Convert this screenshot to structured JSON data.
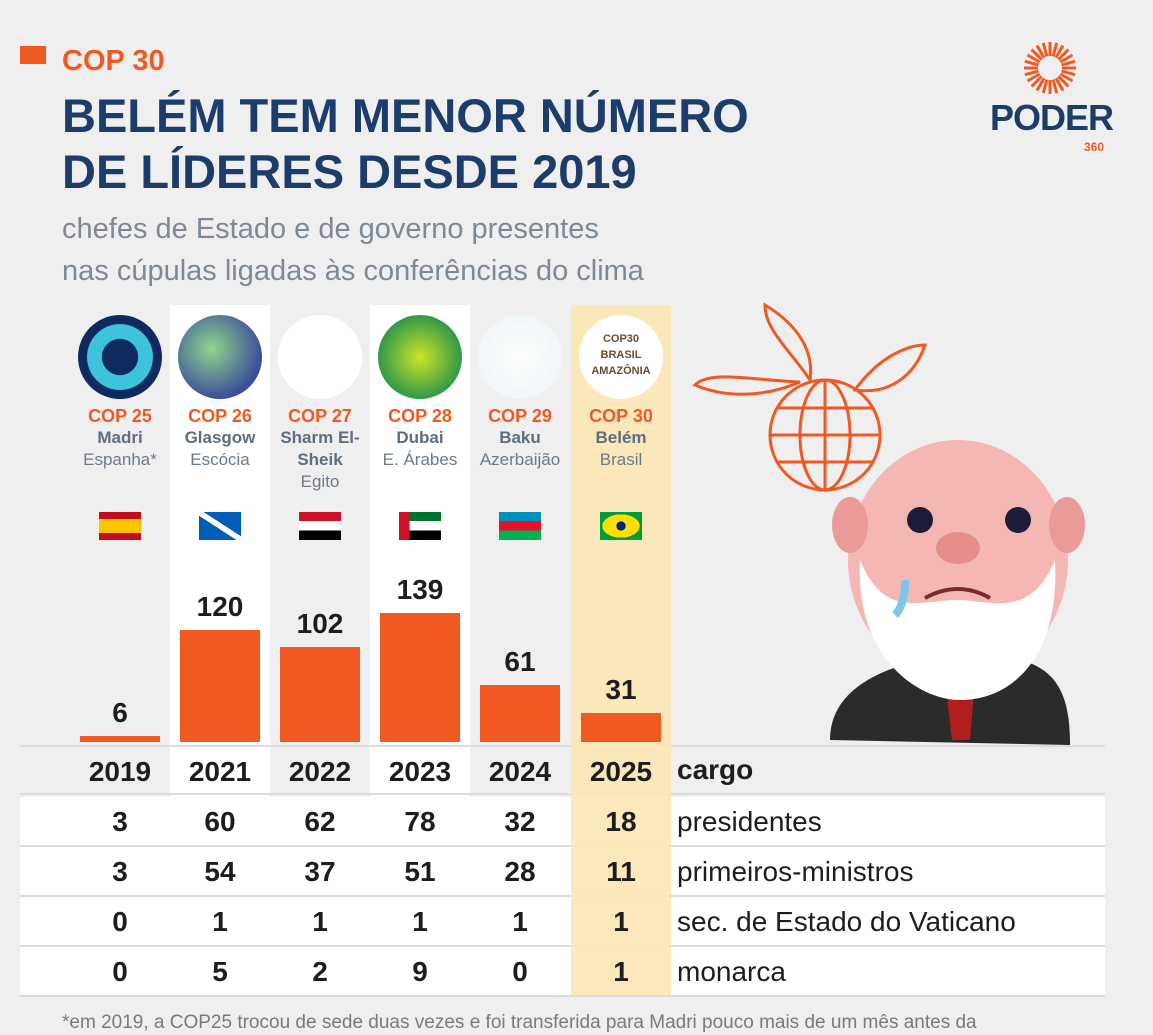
{
  "header": {
    "kicker": "COP 30",
    "title": "BELÉM TEM MENOR NÚMERO DE LÍDERES DESDE 2019",
    "subtitle_line1": "chefes de Estado e de governo presentes",
    "subtitle_line2": "nas cúpulas ligadas às conferências do clima",
    "logo_text": "PODER",
    "logo_sub": "360"
  },
  "colors": {
    "accent": "#f05a22",
    "title": "#1c3c6b",
    "highlight": "#fbe7b5"
  },
  "cops": [
    {
      "cop": "COP 25",
      "city": "Madri",
      "country": "Espanha*",
      "flag": "spain-flag"
    },
    {
      "cop": "COP 26",
      "city": "Glasgow",
      "country": "Escócia",
      "flag": "scotland-flag"
    },
    {
      "cop": "COP 27",
      "city": "Sharm El-Sheik",
      "country": "Egito",
      "flag": "egypt-flag"
    },
    {
      "cop": "COP 28",
      "city": "Dubai",
      "country": "E. Árabes",
      "flag": "uae-flag"
    },
    {
      "cop": "COP 29",
      "city": "Baku",
      "country": "Azerbaijão",
      "flag": "azerbaijan-flag"
    },
    {
      "cop": "COP 30",
      "city": "Belém",
      "country": "Brasil",
      "flag": "brazil-flag",
      "emblem_text": "COP30 BRASIL AMAZÔNIA"
    }
  ],
  "chart_data": {
    "type": "bar",
    "categories": [
      "2019",
      "2021",
      "2022",
      "2023",
      "2024",
      "2025"
    ],
    "values": [
      6,
      120,
      102,
      139,
      61,
      31
    ],
    "highlight": "2025"
  },
  "table": {
    "header_label": "cargo",
    "rows": [
      {
        "label": "presidentes",
        "values": [
          "3",
          "60",
          "62",
          "78",
          "32",
          "18"
        ]
      },
      {
        "label": "primeiros-ministros",
        "values": [
          "3",
          "54",
          "37",
          "51",
          "28",
          "11"
        ]
      },
      {
        "label": "sec. de Estado do Vaticano",
        "values": [
          "0",
          "1",
          "1",
          "1",
          "1",
          "1"
        ]
      },
      {
        "label": "monarca",
        "values": [
          "0",
          "5",
          "2",
          "9",
          "0",
          "1"
        ]
      }
    ]
  },
  "footnote": "*em 2019, a COP25 trocou de sede duas vezes e foi transferida para Madri pouco mais de um mês antes da"
}
